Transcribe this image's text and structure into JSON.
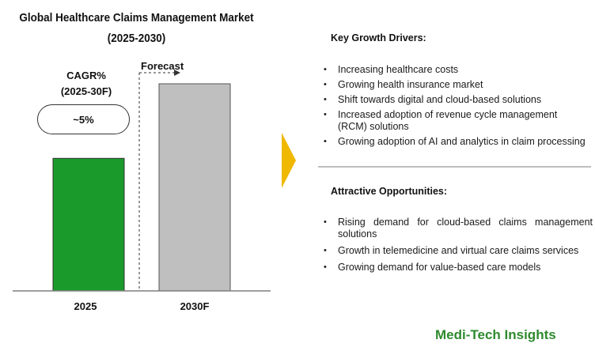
{
  "title": {
    "line1": "Global Healthcare Claims Management Market",
    "line2": "(2025-2030)"
  },
  "cagr": {
    "label_line1": "CAGR%",
    "label_line2": "(2025-30F)",
    "value": "~5%"
  },
  "forecast_label": "Forecast",
  "chart_data": {
    "type": "bar",
    "categories": [
      "2025",
      "2030F"
    ],
    "values": [
      0.64,
      1.0
    ],
    "ylim": [
      0,
      1.0
    ],
    "grid": false,
    "legend": "none",
    "colors": [
      "#1a9a2a",
      "#bfbfbf"
    ]
  },
  "key_growth_drivers": {
    "title": "Key Growth Drivers:",
    "items": [
      {
        "text": "Increasing healthcare costs"
      },
      {
        "text": "Growing health insurance market"
      },
      {
        "text": "Shift towards digital and cloud-based solutions"
      },
      {
        "text": "Increased adoption of revenue cycle management (RCM) solutions"
      },
      {
        "text": "Growing adoption of AI and analytics in claim processing"
      }
    ]
  },
  "attractive_opportunities": {
    "title": "Attractive Opportunities:",
    "items": [
      {
        "text": "Rising demand for cloud-based claims management solutions"
      },
      {
        "text": "Growth in telemedicine and virtual care claims services"
      },
      {
        "text": "Growing demand for value-based care models"
      }
    ]
  },
  "brand": "Medi-Tech Insights",
  "colors": {
    "bar_2025": "#1a9a2a",
    "bar_2030f": "#bfbfbf",
    "arrow": "#f0b800",
    "brand": "#2f8a2f"
  },
  "icons": {
    "arrow": "chevron-right-arrow-icon"
  }
}
